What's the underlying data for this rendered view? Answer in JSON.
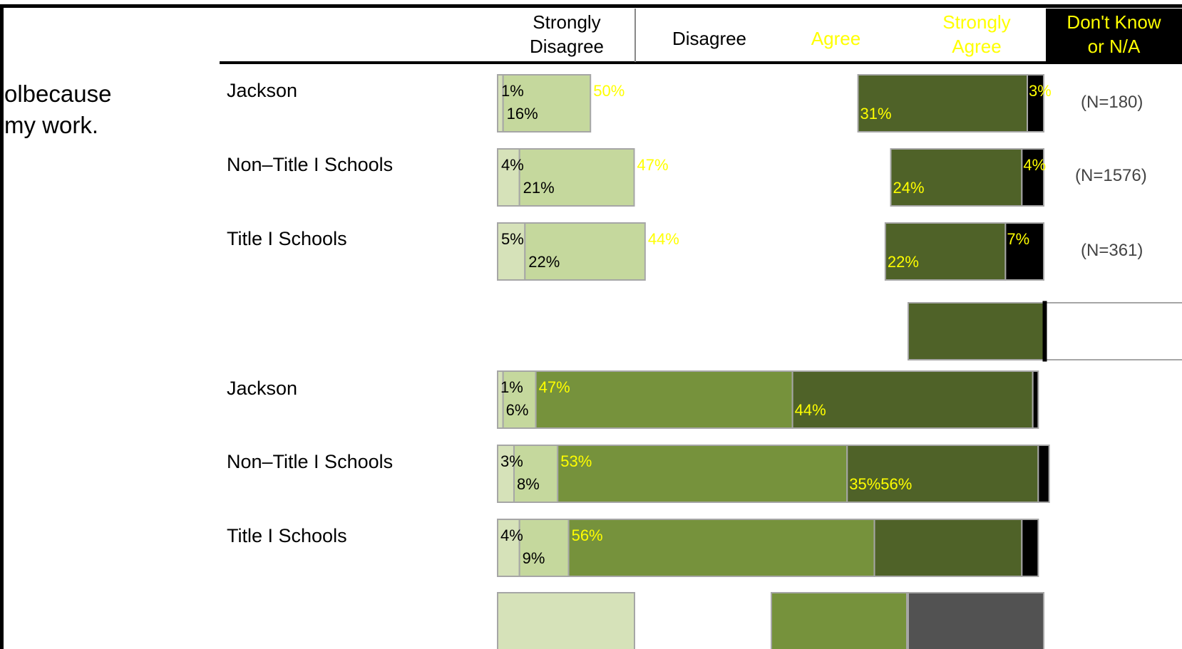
{
  "header": {
    "col1": [
      "Strongly",
      "Disagree"
    ],
    "col2": "Disagree",
    "col3": "Agree",
    "col4": [
      "Strongly",
      "Agree"
    ],
    "col5": [
      "Don't Know",
      "or N/A"
    ]
  },
  "question": {
    "line1": "olbecause",
    "line2": "my work."
  },
  "colors": {
    "strongly_disagree": "#d6e2b9",
    "disagree": "#c5d89d",
    "agree": "#76923c",
    "strongly_agree": "#4f6228",
    "dont_know": "#000000",
    "key_gray": "#525252",
    "yellow_label": "#ffff00",
    "border": "#a6a6a6"
  },
  "chart_data": [
    {
      "type": "bar",
      "orientation": "horizontal",
      "stacked": true,
      "categories": [
        "Jackson",
        "Non–Title I Schools",
        "Title I Schools"
      ],
      "n_labels": [
        "(N=180)",
        "(N=1576)",
        "(N=361)"
      ],
      "series": [
        {
          "name": "Strongly Disagree",
          "values": [
            1,
            4,
            5
          ]
        },
        {
          "name": "Disagree",
          "values": [
            16,
            21,
            22
          ]
        },
        {
          "name": "Agree",
          "values": [
            50,
            47,
            44
          ]
        },
        {
          "name": "Strongly Agree",
          "values": [
            31,
            24,
            22
          ]
        },
        {
          "name": "Don't Know or N/A",
          "values": [
            3,
            4,
            7
          ]
        }
      ],
      "label_text": {
        "strongly_disagree": [
          "1%",
          "4%",
          "5%"
        ],
        "disagree": [
          "16%",
          "21%",
          "22%"
        ],
        "agree": [
          "50%",
          "47%",
          "44%"
        ],
        "strongly_agree": [
          "31%",
          "24%",
          "22%"
        ],
        "dont_know": [
          "3%",
          "4%",
          "7%"
        ]
      }
    },
    {
      "type": "bar",
      "orientation": "horizontal",
      "stacked": true,
      "categories": [
        "Jackson",
        "Non–Title I Schools",
        "Title I Schools"
      ],
      "series": [
        {
          "name": "Strongly Disagree",
          "values": [
            1,
            3,
            4
          ]
        },
        {
          "name": "Disagree",
          "values": [
            6,
            8,
            9
          ]
        },
        {
          "name": "Agree",
          "values": [
            47,
            53,
            56
          ]
        },
        {
          "name": "Strongly Agree",
          "values": [
            44,
            35,
            27
          ]
        },
        {
          "name": "Don't Know or N/A",
          "values": [
            1,
            2,
            3
          ]
        }
      ],
      "label_text": {
        "strongly_disagree": [
          "1%",
          "3%",
          "4%"
        ],
        "disagree": [
          "6%",
          "8%",
          "9%"
        ],
        "agree": [
          "47%",
          "53%",
          "56%"
        ],
        "strongly_agree": [
          "44%",
          "35%56%",
          ""
        ]
      }
    }
  ]
}
